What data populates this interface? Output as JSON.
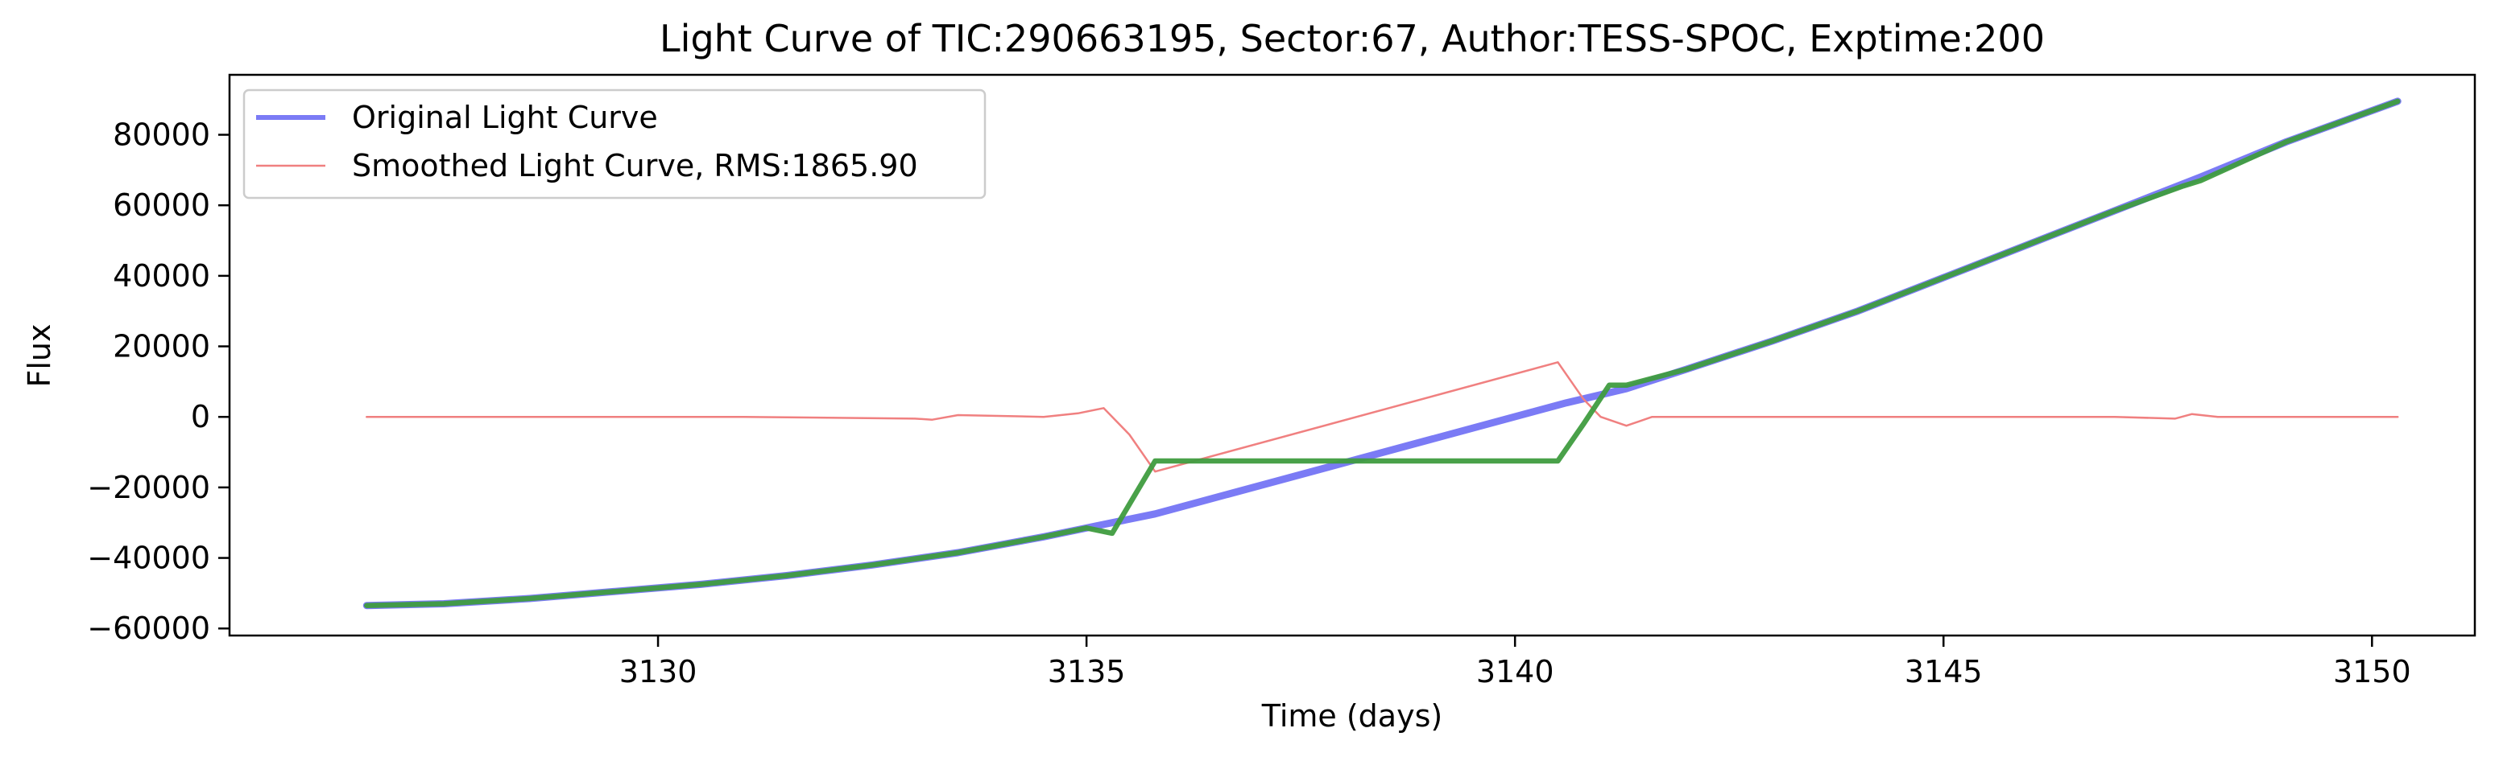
{
  "chart_data": {
    "type": "line",
    "title": "Light Curve of TIC:290663195, Sector:67, Author:TESS-SPOC, Exptime:200",
    "xlabel": "Time (days)",
    "ylabel": "Flux",
    "xlim": [
      3125.0,
      3151.2
    ],
    "ylim": [
      -62000,
      97000
    ],
    "xticks": [
      3130,
      3135,
      3140,
      3145,
      3150
    ],
    "xtick_labels": [
      "3130",
      "3135",
      "3140",
      "3145",
      "3150"
    ],
    "yticks": [
      -60000,
      -40000,
      -20000,
      0,
      20000,
      40000,
      60000,
      80000
    ],
    "ytick_labels": [
      "−60000",
      "−40000",
      "−20000",
      "0",
      "20000",
      "40000",
      "60000",
      "80000"
    ],
    "grid": false,
    "legend_position": "upper-left",
    "series": [
      {
        "name": "Original Light Curve",
        "color": "#7b7bf5",
        "x": [
          3126.6,
          3127.5,
          3128.5,
          3129.5,
          3130.5,
          3131.5,
          3132.5,
          3133.5,
          3134.5,
          3135.2,
          3135.8,
          3140.6,
          3141.3,
          3142.0,
          3143.0,
          3144.0,
          3145.0,
          3146.0,
          3147.0,
          3148.0,
          3149.0,
          3150.3
        ],
        "y": [
          -53500,
          -53000,
          -51500,
          -49500,
          -47500,
          -45000,
          -42000,
          -38500,
          -34000,
          -30500,
          -27500,
          4000,
          8000,
          13500,
          21500,
          30000,
          39500,
          49000,
          58500,
          68000,
          78000,
          89500
        ]
      },
      {
        "name": "Smoothed Light Curve, RMS:1865.90",
        "color": "#f08080",
        "x": [
          3126.6,
          3129.0,
          3131.0,
          3133.0,
          3133.2,
          3133.5,
          3134.5,
          3134.9,
          3135.2,
          3135.5,
          3135.8,
          3140.5,
          3140.8,
          3141.0,
          3141.3,
          3141.6,
          3144.0,
          3147.0,
          3147.7,
          3147.9,
          3148.2,
          3150.3
        ],
        "y": [
          0,
          0,
          0,
          -500,
          -800,
          500,
          0,
          1000,
          2500,
          -5000,
          -15500,
          15500,
          5000,
          0,
          -2500,
          0,
          0,
          0,
          -500,
          800,
          0,
          0
        ]
      },
      {
        "color": "#3f9c3f",
        "x": [
          3126.6,
          3127.5,
          3128.5,
          3129.5,
          3130.5,
          3131.5,
          3132.5,
          3133.5,
          3134.5,
          3135.0,
          3135.3,
          3135.8,
          3140.5,
          3140.8,
          3141.1,
          3141.3,
          3142.0,
          3143.0,
          3144.0,
          3145.0,
          3146.0,
          3147.0,
          3147.8,
          3148.0,
          3149.0,
          3150.3
        ],
        "y": [
          -53500,
          -53000,
          -51500,
          -49500,
          -47500,
          -45000,
          -42000,
          -38500,
          -34000,
          -31500,
          -33000,
          -12500,
          -12500,
          -2000,
          9000,
          9000,
          13500,
          21500,
          30000,
          39500,
          49000,
          58500,
          65500,
          67000,
          78000,
          89500
        ]
      }
    ]
  }
}
